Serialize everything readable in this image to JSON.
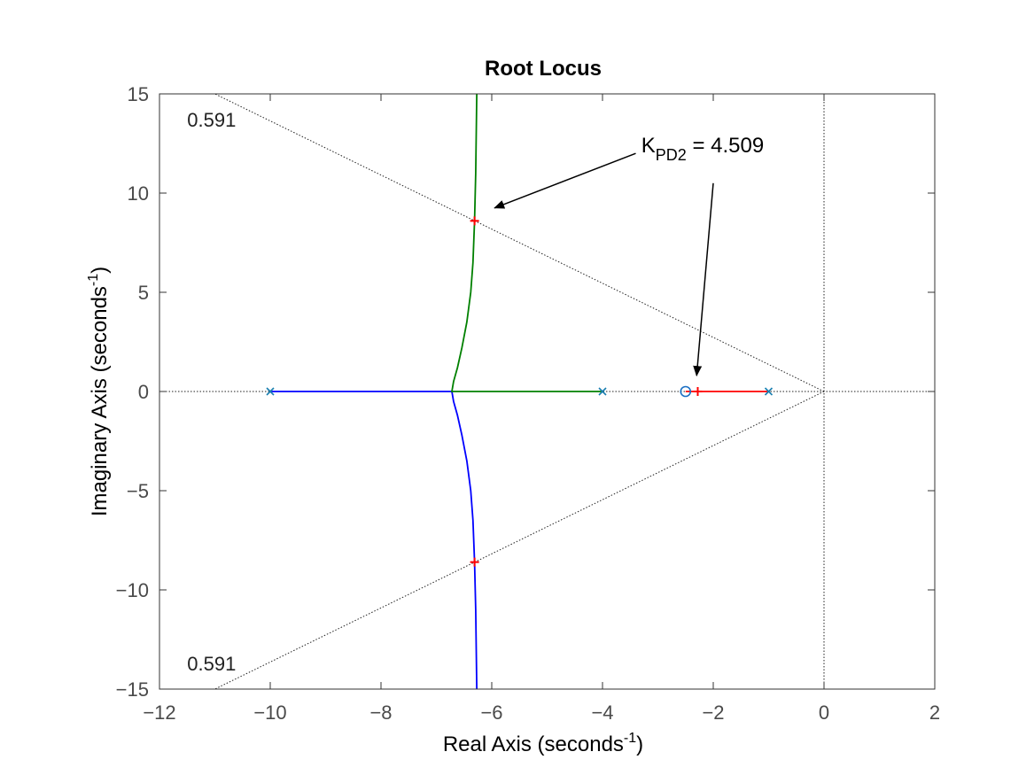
{
  "chart_data": {
    "type": "line",
    "title": "Root Locus",
    "xlabel": {
      "main": "Real Axis (seconds",
      "sup": "-1",
      "close": ")"
    },
    "ylabel": {
      "main": "Imaginary Axis (seconds",
      "sup": "-1",
      "close": ")"
    },
    "xlim": [
      -12,
      2
    ],
    "ylim": [
      -15,
      15
    ],
    "xticks": [
      -12,
      -10,
      -8,
      -6,
      -4,
      -2,
      0,
      2
    ],
    "yticks": [
      -15,
      -10,
      -5,
      0,
      5,
      10,
      15
    ],
    "poles": [
      [
        -10,
        0
      ],
      [
        -4,
        0
      ],
      [
        -1,
        0
      ]
    ],
    "zeros": [
      [
        -2.5,
        0
      ]
    ],
    "breakaway": -6.72,
    "series": [
      {
        "color": "#0000ff",
        "points": [
          [
            -10,
            0
          ],
          [
            -6.72,
            0
          ],
          [
            -6.69,
            -0.5
          ],
          [
            -6.62,
            -1.2
          ],
          [
            -6.54,
            -2.2
          ],
          [
            -6.45,
            -3.5
          ],
          [
            -6.38,
            -5.0
          ],
          [
            -6.34,
            -6.5
          ],
          [
            -6.31,
            -8.6
          ],
          [
            -6.29,
            -11
          ],
          [
            -6.27,
            -15
          ]
        ]
      },
      {
        "color": "#008000",
        "points": [
          [
            -4,
            0
          ],
          [
            -6.72,
            0
          ],
          [
            -6.69,
            0.5
          ],
          [
            -6.62,
            1.2
          ],
          [
            -6.54,
            2.2
          ],
          [
            -6.45,
            3.5
          ],
          [
            -6.38,
            5.0
          ],
          [
            -6.34,
            6.5
          ],
          [
            -6.31,
            8.6
          ],
          [
            -6.29,
            11
          ],
          [
            -6.27,
            15
          ]
        ]
      },
      {
        "color": "#ff0000",
        "points": [
          [
            -1,
            0
          ],
          [
            -2.5,
            0
          ]
        ]
      }
    ],
    "damping_lines": [
      {
        "from": [
          0,
          0
        ],
        "to": [
          -11.0,
          15
        ]
      },
      {
        "from": [
          0,
          0
        ],
        "to": [
          -11.0,
          -15
        ]
      }
    ],
    "damping_labels": [
      {
        "text": "0.591",
        "x": -11.5,
        "y": 13.7
      },
      {
        "text": "0.591",
        "x": -11.5,
        "y": -13.7
      }
    ],
    "selected_points": [
      [
        -6.31,
        8.6
      ],
      [
        -6.31,
        -8.6
      ],
      [
        -2.28,
        0
      ]
    ],
    "annotation": {
      "main": "K",
      "sub": "PD2",
      "rest": " = 4.509",
      "x": -3.3,
      "y": 12.4,
      "arrows": [
        {
          "from": [
            -3.4,
            12.0
          ],
          "to": [
            -5.95,
            9.25
          ]
        },
        {
          "from": [
            -2.0,
            10.5
          ],
          "to": [
            -2.3,
            0.8
          ]
        }
      ]
    }
  }
}
